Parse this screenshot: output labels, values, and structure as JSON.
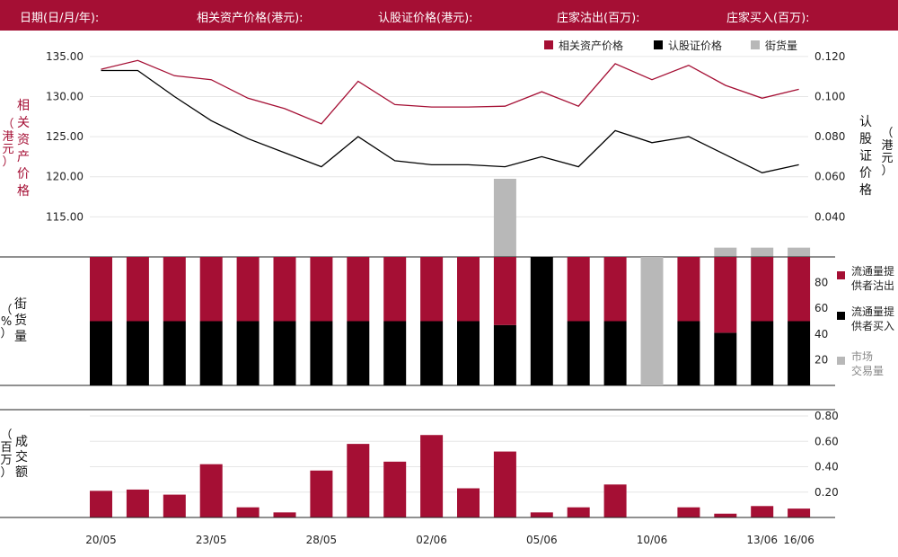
{
  "header": {
    "date_label": "日期(日/月/年):",
    "asset_price_label": "相关资产价格(港元):",
    "warrant_price_label": "认股证价格(港元):",
    "dealer_sell_label": "庄家沽出(百万):",
    "dealer_buy_label": "庄家买入(百万):"
  },
  "colors": {
    "header_bg": "#a50f34",
    "asset": "#a50f34",
    "warrant": "#000000",
    "street": "#b8b8b8",
    "grid": "#e6e6e6"
  },
  "chart_data": [
    {
      "id": "price",
      "type": "line",
      "legend": [
        "相关资产价格",
        "认股证价格",
        "街货量"
      ],
      "left_axis_label": [
        "相",
        "关",
        "资",
        "产",
        "价",
        "格"
      ],
      "left_axis_unit": [
        "（",
        "港",
        "元",
        "）"
      ],
      "right_axis_label": [
        "认",
        "股",
        "证",
        "价",
        "格"
      ],
      "right_axis_unit": [
        "（",
        "港",
        "元",
        "）"
      ],
      "left_ticks": [
        "135.00",
        "130.00",
        "125.00",
        "120.00",
        "115.00"
      ],
      "left_tick_values": [
        135,
        130,
        125,
        120,
        115
      ],
      "left_ylim": [
        110,
        137
      ],
      "right_ticks": [
        "0.120",
        "0.100",
        "0.080",
        "0.060",
        "0.040"
      ],
      "right_tick_values": [
        0.12,
        0.1,
        0.08,
        0.06,
        0.04
      ],
      "right_ylim": [
        0.02,
        0.128
      ],
      "series": [
        {
          "name": "相关资产价格",
          "values": [
            133.4,
            134.5,
            132.6,
            132.1,
            129.8,
            128.5,
            126.6,
            131.9,
            129.0,
            128.7,
            128.7,
            128.8,
            130.6,
            128.8,
            134.1,
            132.1,
            133.9,
            131.4,
            129.8,
            130.9
          ]
        },
        {
          "name": "认股证价格",
          "values": [
            0.113,
            0.113,
            0.1,
            0.088,
            0.079,
            0.072,
            0.065,
            0.08,
            0.068,
            0.066,
            0.066,
            0.065,
            0.07,
            0.065,
            0.083,
            0.077,
            0.08,
            0.071,
            0.062,
            0.066
          ]
        }
      ]
    },
    {
      "id": "street",
      "type": "bar",
      "name": "街货量",
      "values": [
        0,
        0,
        0,
        0,
        0,
        0,
        0,
        0,
        0,
        0,
        0,
        21,
        0,
        0,
        0,
        0,
        0,
        2.5,
        2.5,
        2.5
      ],
      "ylim": [
        0,
        21
      ]
    },
    {
      "id": "ratio",
      "type": "bar",
      "y_axis_label": [
        "街",
        "货",
        "量"
      ],
      "y_axis_unit": [
        "（",
        "%",
        "）"
      ],
      "ticks": [
        "80",
        "60",
        "40",
        "20"
      ],
      "tick_values": [
        80,
        60,
        40,
        20
      ],
      "ylim": [
        0,
        100
      ],
      "legend": [
        {
          "line1": "流通量提",
          "line2": "供者沽出"
        },
        {
          "line1": "流通量提",
          "line2": "供者买入"
        },
        {
          "line1": "市场",
          "line2": "交易量"
        }
      ],
      "sell": [
        50,
        50,
        50,
        50,
        50,
        50,
        50,
        50,
        50,
        50,
        50,
        53,
        0,
        50,
        50,
        0,
        50,
        59,
        50,
        50
      ],
      "buy": [
        50,
        50,
        50,
        50,
        50,
        50,
        50,
        50,
        50,
        50,
        50,
        47,
        100,
        50,
        50,
        0,
        50,
        41,
        50,
        50
      ],
      "market": [
        0,
        0,
        0,
        0,
        0,
        0,
        0,
        0,
        0,
        0,
        0,
        0,
        0,
        0,
        0,
        100,
        0,
        0,
        0,
        0
      ]
    },
    {
      "id": "turnover",
      "type": "bar",
      "y_axis_label": [
        "成",
        "交",
        "额"
      ],
      "y_axis_unit": [
        "（",
        "百",
        "万",
        "）"
      ],
      "ticks": [
        "0.80",
        "0.60",
        "0.40",
        "0.20"
      ],
      "tick_values": [
        0.8,
        0.6,
        0.4,
        0.2
      ],
      "ylim": [
        0,
        0.85
      ],
      "values": [
        0.21,
        0.22,
        0.18,
        0.42,
        0.08,
        0.04,
        0.37,
        0.58,
        0.44,
        0.65,
        0.23,
        0.52,
        0.04,
        0.08,
        0.26,
        0,
        0.08,
        0.03,
        0.09,
        0.07
      ],
      "x_ticks": [
        "20/05",
        "23/05",
        "28/05",
        "02/06",
        "05/06",
        "10/06",
        "13/06",
        "16/06"
      ],
      "x_tick_index": [
        0,
        3,
        6,
        9,
        12,
        15,
        18,
        19
      ]
    }
  ]
}
